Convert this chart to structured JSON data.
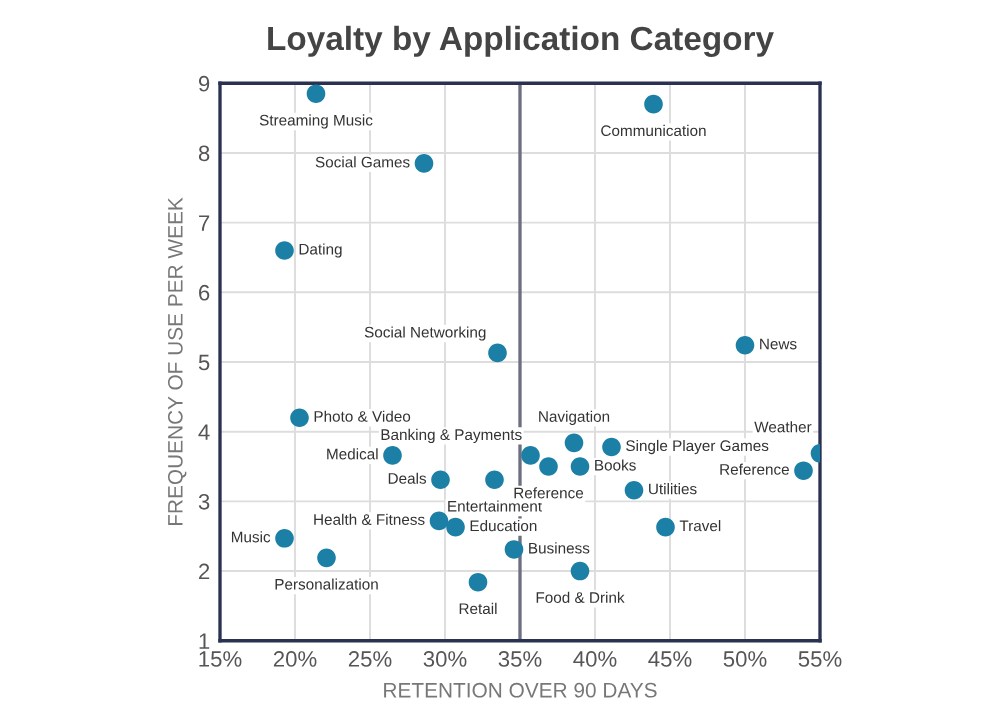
{
  "chart_data": {
    "type": "scatter",
    "title": "Loyalty by Application Category",
    "xlabel": "RETENTION OVER 90 DAYS",
    "ylabel": "FREQUENCY OF USE PER WEEK",
    "x": [
      21.4,
      43.9,
      28.6,
      19.3,
      33.5,
      50.0,
      20.3,
      26.5,
      29.7,
      33.3,
      35.7,
      36.9,
      38.6,
      39.0,
      41.1,
      42.6,
      44.7,
      53.9,
      55.0,
      19.3,
      22.1,
      29.6,
      30.7,
      34.6,
      32.2,
      39.0
    ],
    "series": [
      {
        "color": "#1b7fa6",
        "values": [
          8.85,
          8.7,
          7.85,
          6.6,
          5.13,
          5.24,
          4.2,
          3.66,
          3.31,
          3.31,
          3.66,
          3.5,
          3.84,
          3.5,
          3.78,
          3.16,
          2.63,
          3.44,
          3.69,
          2.47,
          2.19,
          2.72,
          2.63,
          2.31,
          1.84,
          2.0
        ]
      }
    ],
    "annotations": [
      {
        "text": "Streaming Music",
        "x": 21.4,
        "y": 8.85
      },
      {
        "text": "Communication",
        "x": 43.9,
        "y": 8.7
      },
      {
        "text": "Social Games",
        "x": 28.6,
        "y": 7.85
      },
      {
        "text": "Dating",
        "x": 19.3,
        "y": 6.6
      },
      {
        "text": "Social Networking",
        "x": 33.5,
        "y": 5.13
      },
      {
        "text": "News",
        "x": 50.0,
        "y": 5.24
      },
      {
        "text": "Photo & Video",
        "x": 20.3,
        "y": 4.2
      },
      {
        "text": "Medical",
        "x": 26.5,
        "y": 3.66
      },
      {
        "text": "Deals",
        "x": 29.7,
        "y": 3.31
      },
      {
        "text": "Entertainment",
        "x": 33.3,
        "y": 3.31
      },
      {
        "text": "Banking & Payments",
        "x": 35.7,
        "y": 3.66
      },
      {
        "text": "Reference",
        "x": 36.9,
        "y": 3.5
      },
      {
        "text": "Navigation",
        "x": 38.6,
        "y": 3.84
      },
      {
        "text": "Books",
        "x": 39.0,
        "y": 3.5
      },
      {
        "text": "Single Player Games",
        "x": 41.1,
        "y": 3.78
      },
      {
        "text": "Utilities",
        "x": 42.6,
        "y": 3.16
      },
      {
        "text": "Travel",
        "x": 44.7,
        "y": 2.63
      },
      {
        "text": "Reference",
        "x": 53.9,
        "y": 3.44
      },
      {
        "text": "Weather",
        "x": 55.0,
        "y": 3.69
      },
      {
        "text": "Music",
        "x": 19.3,
        "y": 2.47
      },
      {
        "text": "Personalization",
        "x": 22.1,
        "y": 2.19
      },
      {
        "text": "Health & Fitness",
        "x": 29.6,
        "y": 2.72
      },
      {
        "text": "Education",
        "x": 30.7,
        "y": 2.63
      },
      {
        "text": "Business",
        "x": 34.6,
        "y": 2.31
      },
      {
        "text": "Retail",
        "x": 32.2,
        "y": 1.84
      },
      {
        "text": "Food & Drink",
        "x": 39.0,
        "y": 2.0
      }
    ],
    "xlim": [
      15,
      55
    ],
    "ylim": [
      1,
      9
    ],
    "xticks": [
      {
        "value": 15,
        "label": "15%"
      },
      {
        "value": 20,
        "label": "20%"
      },
      {
        "value": 25,
        "label": "25%"
      },
      {
        "value": 30,
        "label": "30%"
      },
      {
        "value": 35,
        "label": "35%"
      },
      {
        "value": 40,
        "label": "40%"
      },
      {
        "value": 45,
        "label": "45%"
      },
      {
        "value": 50,
        "label": "50%"
      },
      {
        "value": 55,
        "label": "55%"
      }
    ],
    "yticks": [
      1,
      2,
      3,
      4,
      5,
      6,
      7,
      8,
      9
    ],
    "ref_lines": [
      {
        "axis": "x",
        "value": 35,
        "color": "#6b6f80"
      }
    ],
    "grid": true,
    "marker": "circle"
  }
}
